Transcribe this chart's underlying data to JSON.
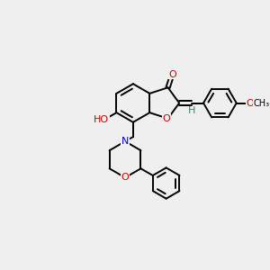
{
  "bg_color": "#efefef",
  "bond_color": "#000000",
  "bond_width": 1.4,
  "dbo": 0.08,
  "atom_colors": {
    "O": "#cc0000",
    "N": "#0000cc",
    "C": "#000000",
    "H": "#2e8b57"
  },
  "fs": 7.5,
  "scale": 1.0
}
